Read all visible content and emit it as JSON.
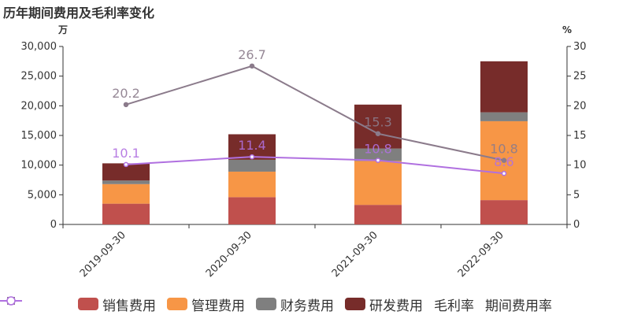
{
  "chart_data": {
    "type": "bar",
    "title": "历年期间费用及毛利率变化",
    "left_unit": "万",
    "right_unit": "%",
    "categories": [
      "2019-09-30",
      "2020-09-30",
      "2021-09-30",
      "2022-09-30"
    ],
    "left_axis": {
      "min": 0,
      "max": 30000,
      "ticks": [
        "0",
        "5,000",
        "10,000",
        "15,000",
        "20,000",
        "25,000",
        "30,000"
      ]
    },
    "right_axis": {
      "min": 0,
      "max": 30,
      "ticks": [
        "0",
        "5",
        "10",
        "15",
        "20",
        "25",
        "30"
      ]
    },
    "bar_series": [
      {
        "name": "销售费用",
        "color": "#c0504d",
        "values": [
          3500,
          4600,
          3300,
          4100
        ]
      },
      {
        "name": "管理费用",
        "color": "#f79646",
        "values": [
          3300,
          4300,
          7400,
          13300
        ]
      },
      {
        "name": "财务费用",
        "color": "#7f7f7f",
        "values": [
          600,
          2000,
          2100,
          1500
        ]
      },
      {
        "name": "研发费用",
        "color": "#772c2a",
        "values": [
          2900,
          4300,
          7400,
          8600
        ]
      }
    ],
    "line_series": [
      {
        "name": "毛利率",
        "color": "#8b7b8b",
        "values": [
          20.2,
          26.7,
          15.3,
          10.8
        ],
        "labels": [
          "20.2",
          "26.7",
          "15.3",
          "10.8"
        ]
      },
      {
        "name": "期间费用率",
        "color": "#b070e0",
        "values": [
          10.1,
          11.4,
          10.8,
          8.6
        ],
        "labels": [
          "10.1",
          "11.4",
          "10.8",
          "8.6"
        ]
      }
    ],
    "grid": false,
    "legend_position": "bottom"
  }
}
